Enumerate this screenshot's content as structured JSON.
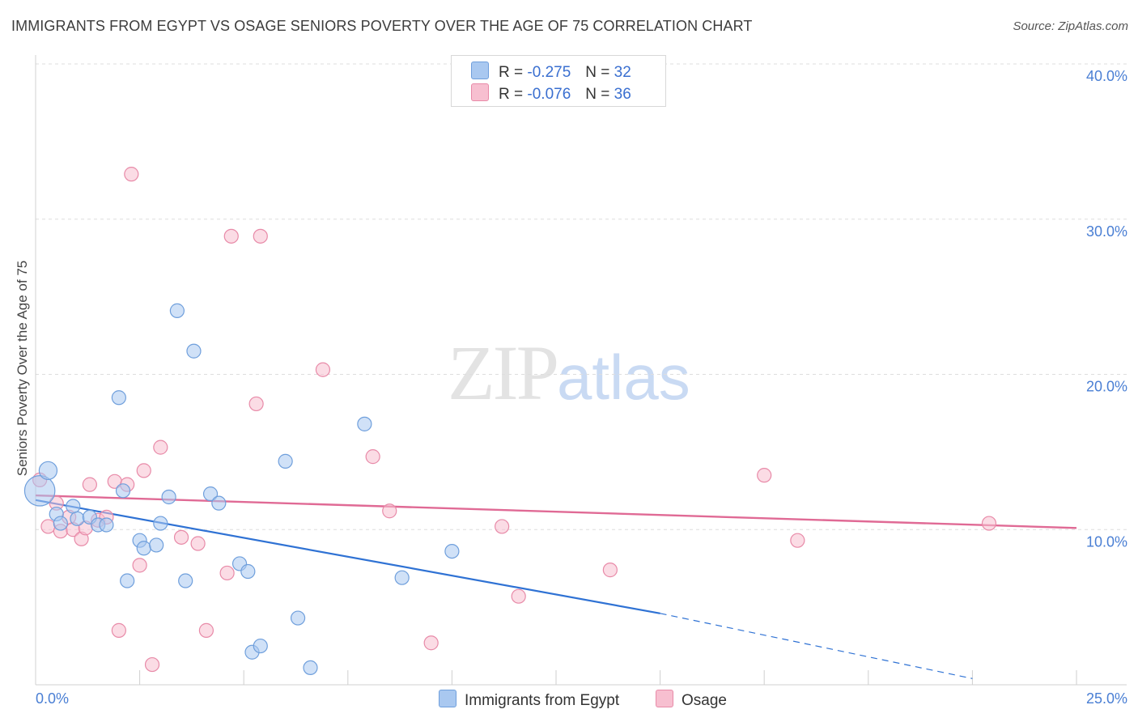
{
  "header": {
    "title": "IMMIGRANTS FROM EGYPT VS OSAGE SENIORS POVERTY OVER THE AGE OF 75 CORRELATION CHART",
    "source": "Source: ZipAtlas.com"
  },
  "watermark": {
    "zip": "ZIP",
    "atlas": "atlas"
  },
  "legend": {
    "rows": [
      {
        "r_label": "R =",
        "r_value": "-0.275",
        "n_label": "N =",
        "n_value": "32"
      },
      {
        "r_label": "R =",
        "r_value": "-0.076",
        "n_label": "N =",
        "n_value": "36"
      }
    ],
    "series_names": [
      "Immigrants from Egypt",
      "Osage"
    ]
  },
  "colors": {
    "egypt_fill": "#a9c8f0",
    "egypt_stroke": "#6f9fdc",
    "egypt_line": "#2f72d4",
    "osage_fill": "#f7bfd0",
    "osage_stroke": "#e88aa8",
    "osage_line": "#e06a95"
  },
  "chart_data": {
    "type": "scatter",
    "title": "IMMIGRANTS FROM EGYPT VS OSAGE SENIORS POVERTY OVER THE AGE OF 75 CORRELATION CHART",
    "xlabel": "",
    "ylabel": "Seniors Poverty Over the Age of 75",
    "xlim": [
      0,
      25
    ],
    "ylim": [
      0,
      40
    ],
    "x_tick_labels": [
      "0.0%",
      "25.0%"
    ],
    "y_ticks": [
      10,
      20,
      30,
      40
    ],
    "y_tick_labels": [
      "10.0%",
      "20.0%",
      "30.0%",
      "40.0%"
    ],
    "grid": true,
    "legend": "top-center",
    "series": [
      {
        "name": "Immigrants from Egypt",
        "R": -0.275,
        "N": 32,
        "trend": {
          "x0": 0,
          "y0": 11.9,
          "x1": 15,
          "y1": 4.6,
          "dash_to_x": 22.5,
          "dash_to_y": 0.4
        },
        "points": [
          {
            "x": 0.1,
            "y": 12.5,
            "s": 2.2
          },
          {
            "x": 0.3,
            "y": 13.8,
            "s": 1.3
          },
          {
            "x": 0.5,
            "y": 11.0,
            "s": 1.0
          },
          {
            "x": 0.9,
            "y": 11.5,
            "s": 1.0
          },
          {
            "x": 1.0,
            "y": 10.7,
            "s": 1.0
          },
          {
            "x": 1.3,
            "y": 10.8,
            "s": 1.0
          },
          {
            "x": 1.5,
            "y": 10.3,
            "s": 1.0
          },
          {
            "x": 1.7,
            "y": 10.3,
            "s": 1.0
          },
          {
            "x": 2.0,
            "y": 18.5,
            "s": 1.0
          },
          {
            "x": 2.1,
            "y": 12.5,
            "s": 1.0
          },
          {
            "x": 2.2,
            "y": 6.7,
            "s": 1.0
          },
          {
            "x": 2.5,
            "y": 9.3,
            "s": 1.0
          },
          {
            "x": 2.6,
            "y": 8.8,
            "s": 1.0
          },
          {
            "x": 2.9,
            "y": 9.0,
            "s": 1.0
          },
          {
            "x": 3.0,
            "y": 10.4,
            "s": 1.0
          },
          {
            "x": 3.2,
            "y": 12.1,
            "s": 1.0
          },
          {
            "x": 3.4,
            "y": 24.1,
            "s": 1.0
          },
          {
            "x": 3.6,
            "y": 6.7,
            "s": 1.0
          },
          {
            "x": 3.8,
            "y": 21.5,
            "s": 1.0
          },
          {
            "x": 4.2,
            "y": 12.3,
            "s": 1.0
          },
          {
            "x": 4.4,
            "y": 11.7,
            "s": 1.0
          },
          {
            "x": 4.9,
            "y": 7.8,
            "s": 1.0
          },
          {
            "x": 5.1,
            "y": 7.3,
            "s": 1.0
          },
          {
            "x": 5.2,
            "y": 2.1,
            "s": 1.0
          },
          {
            "x": 5.4,
            "y": 2.5,
            "s": 1.0
          },
          {
            "x": 6.0,
            "y": 14.4,
            "s": 1.0
          },
          {
            "x": 6.3,
            "y": 4.3,
            "s": 1.0
          },
          {
            "x": 6.6,
            "y": 1.1,
            "s": 1.0
          },
          {
            "x": 7.9,
            "y": 16.8,
            "s": 1.0
          },
          {
            "x": 8.8,
            "y": 6.9,
            "s": 1.0
          },
          {
            "x": 10.0,
            "y": 8.6,
            "s": 1.0
          },
          {
            "x": 0.6,
            "y": 10.4,
            "s": 1.0
          }
        ]
      },
      {
        "name": "Osage",
        "R": -0.076,
        "N": 36,
        "trend": {
          "x0": 0,
          "y0": 12.2,
          "x1": 25,
          "y1": 10.1
        },
        "points": [
          {
            "x": 0.1,
            "y": 13.2,
            "s": 1.0
          },
          {
            "x": 0.3,
            "y": 10.2,
            "s": 1.0
          },
          {
            "x": 0.5,
            "y": 11.7,
            "s": 1.0
          },
          {
            "x": 0.6,
            "y": 9.9,
            "s": 1.0
          },
          {
            "x": 0.8,
            "y": 10.8,
            "s": 1.0
          },
          {
            "x": 0.9,
            "y": 10.0,
            "s": 1.0
          },
          {
            "x": 1.1,
            "y": 9.4,
            "s": 1.0
          },
          {
            "x": 1.2,
            "y": 10.1,
            "s": 1.0
          },
          {
            "x": 1.3,
            "y": 12.9,
            "s": 1.0
          },
          {
            "x": 1.5,
            "y": 10.6,
            "s": 1.0
          },
          {
            "x": 1.7,
            "y": 10.8,
            "s": 1.0
          },
          {
            "x": 1.9,
            "y": 13.1,
            "s": 1.0
          },
          {
            "x": 2.0,
            "y": 3.5,
            "s": 1.0
          },
          {
            "x": 2.2,
            "y": 12.9,
            "s": 1.0
          },
          {
            "x": 2.3,
            "y": 32.9,
            "s": 1.0
          },
          {
            "x": 2.5,
            "y": 7.7,
            "s": 1.0
          },
          {
            "x": 2.6,
            "y": 13.8,
            "s": 1.0
          },
          {
            "x": 2.8,
            "y": 1.3,
            "s": 1.0
          },
          {
            "x": 3.0,
            "y": 15.3,
            "s": 1.0
          },
          {
            "x": 3.5,
            "y": 9.5,
            "s": 1.0
          },
          {
            "x": 3.9,
            "y": 9.1,
            "s": 1.0
          },
          {
            "x": 4.1,
            "y": 3.5,
            "s": 1.0
          },
          {
            "x": 4.6,
            "y": 7.2,
            "s": 1.0
          },
          {
            "x": 4.7,
            "y": 28.9,
            "s": 1.0
          },
          {
            "x": 5.3,
            "y": 18.1,
            "s": 1.0
          },
          {
            "x": 5.4,
            "y": 28.9,
            "s": 1.0
          },
          {
            "x": 6.9,
            "y": 20.3,
            "s": 1.0
          },
          {
            "x": 8.1,
            "y": 14.7,
            "s": 1.0
          },
          {
            "x": 8.5,
            "y": 11.2,
            "s": 1.0
          },
          {
            "x": 9.5,
            "y": 2.7,
            "s": 1.0
          },
          {
            "x": 11.2,
            "y": 10.2,
            "s": 1.0
          },
          {
            "x": 11.6,
            "y": 5.7,
            "s": 1.0
          },
          {
            "x": 13.8,
            "y": 7.4,
            "s": 1.0
          },
          {
            "x": 17.5,
            "y": 13.5,
            "s": 1.0
          },
          {
            "x": 18.3,
            "y": 9.3,
            "s": 1.0
          },
          {
            "x": 22.9,
            "y": 10.4,
            "s": 1.0
          }
        ]
      }
    ]
  }
}
